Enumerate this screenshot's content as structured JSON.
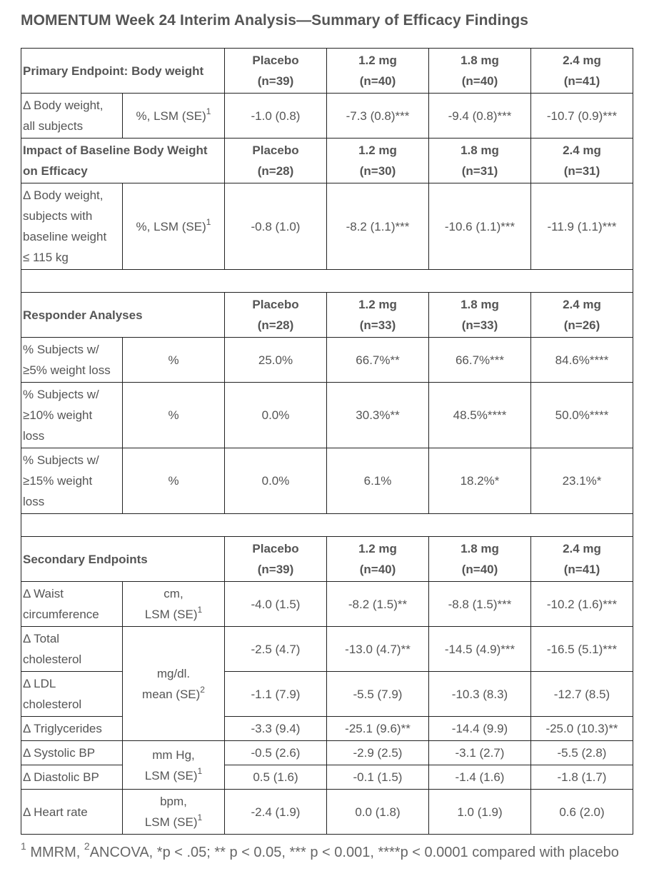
{
  "title": "MOMENTUM Week 24 Interim Analysis—Summary of Efficacy Findings",
  "sections": [
    {
      "header": {
        "title": "Primary Endpoint: Body weight",
        "arms": [
          {
            "name": "Placebo",
            "n": "(n=39)"
          },
          {
            "name": "1.2 mg",
            "n": "(n=40)"
          },
          {
            "name": "1.8 mg",
            "n": "(n=40)"
          },
          {
            "name": "2.4 mg",
            "n": "(n=41)"
          }
        ]
      },
      "rows": [
        {
          "label": [
            "Δ Body weight,",
            "all subjects"
          ],
          "unit": {
            "lines": [
              "%, LSM (SE)"
            ],
            "sup": "1",
            "rowspan": 1
          },
          "values": [
            "-1.0 (0.8)",
            "-7.3 (0.8)***",
            "-9.4 (0.8)***",
            "-10.7 (0.9)***"
          ]
        }
      ]
    },
    {
      "header": {
        "title": "Impact of Baseline Body Weight on Efficacy",
        "arms": [
          {
            "name": "Placebo",
            "n": "(n=28)"
          },
          {
            "name": "1.2 mg",
            "n": "(n=30)"
          },
          {
            "name": "1.8 mg",
            "n": "(n=31)"
          },
          {
            "name": "2.4 mg",
            "n": "(n=31)"
          }
        ]
      },
      "rows": [
        {
          "label": [
            "Δ Body weight,",
            "subjects with",
            "baseline weight",
            "≤ 115 kg"
          ],
          "unit": {
            "lines": [
              "%, LSM (SE)"
            ],
            "sup": "1",
            "rowspan": 1
          },
          "values": [
            "-0.8 (1.0)",
            "-8.2 (1.1)***",
            "-10.6 (1.1)***",
            "-11.9 (1.1)***"
          ]
        }
      ],
      "spacer_after": true
    },
    {
      "header": {
        "title": "Responder Analyses",
        "arms": [
          {
            "name": "Placebo",
            "n": "(n=28)"
          },
          {
            "name": "1.2 mg",
            "n": "(n=33)"
          },
          {
            "name": "1.8 mg",
            "n": "(n=33)"
          },
          {
            "name": "2.4 mg",
            "n": "(n=26)"
          }
        ]
      },
      "rows": [
        {
          "label": [
            "% Subjects w/",
            "≥5% weight loss"
          ],
          "unit": {
            "lines": [
              "%"
            ],
            "sup": "",
            "rowspan": 1
          },
          "values": [
            "25.0%",
            "66.7%**",
            "66.7%***",
            "84.6%****"
          ]
        },
        {
          "label": [
            "% Subjects w/",
            "≥10% weight",
            "loss"
          ],
          "unit": {
            "lines": [
              "%"
            ],
            "sup": "",
            "rowspan": 1
          },
          "values": [
            "0.0%",
            "30.3%**",
            "48.5%****",
            "50.0%****"
          ]
        },
        {
          "label": [
            "% Subjects w/",
            "≥15% weight",
            "loss"
          ],
          "unit": {
            "lines": [
              "%"
            ],
            "sup": "",
            "rowspan": 1
          },
          "values": [
            "0.0%",
            "6.1%",
            "18.2%*",
            "23.1%*"
          ]
        }
      ],
      "spacer_after": true
    },
    {
      "header": {
        "title": "Secondary Endpoints",
        "arms": [
          {
            "name": "Placebo",
            "n": "(n=39)"
          },
          {
            "name": "1.2 mg",
            "n": "(n=40)"
          },
          {
            "name": "1.8 mg",
            "n": "(n=40)"
          },
          {
            "name": "2.4 mg",
            "n": "(n=41)"
          }
        ]
      },
      "rows": [
        {
          "label": [
            "Δ Waist",
            "circumference"
          ],
          "unit": {
            "lines": [
              "cm,",
              "LSM (SE)"
            ],
            "sup": "1",
            "rowspan": 1
          },
          "values": [
            "-4.0 (1.5)",
            "-8.2 (1.5)**",
            "-8.8 (1.5)***",
            "-10.2 (1.6)***"
          ]
        },
        {
          "label": [
            "Δ Total",
            "cholesterol"
          ],
          "unit": {
            "lines": [
              "mg/dl.",
              "mean (SE)"
            ],
            "sup": "2",
            "rowspan": 3
          },
          "values": [
            "-2.5 (4.7)",
            "-13.0 (4.7)**",
            "-14.5 (4.9)***",
            "-16.5 (5.1)***"
          ]
        },
        {
          "label": [
            "Δ LDL",
            "cholesterol"
          ],
          "values": [
            "-1.1 (7.9)",
            "-5.5 (7.9)",
            "-10.3 (8.3)",
            "-12.7 (8.5)"
          ]
        },
        {
          "label": [
            "Δ Triglycerides"
          ],
          "values": [
            "-3.3 (9.4)",
            "-25.1 (9.6)**",
            "-14.4 (9.9)",
            "-25.0 (10.3)**"
          ]
        },
        {
          "label": [
            "Δ Systolic BP"
          ],
          "unit": {
            "lines": [
              "mm Hg,",
              "LSM (SE)"
            ],
            "sup": "1",
            "rowspan": 2
          },
          "values": [
            "-0.5 (2.6)",
            "-2.9 (2.5)",
            "-3.1 (2.7)",
            "-5.5 (2.8)"
          ]
        },
        {
          "label": [
            "Δ Diastolic BP"
          ],
          "values": [
            "0.5 (1.6)",
            "-0.1 (1.5)",
            "-1.4 (1.6)",
            "-1.8 (1.7)"
          ]
        },
        {
          "label": [
            "Δ Heart rate"
          ],
          "unit": {
            "lines": [
              "bpm,",
              "LSM (SE)"
            ],
            "sup": "1",
            "rowspan": 1
          },
          "values": [
            "-2.4 (1.9)",
            "0.0 (1.8)",
            "1.0 (1.9)",
            "0.6 (2.0)"
          ]
        }
      ]
    }
  ],
  "footnote": {
    "sup1": "1",
    "part1": " MMRM, ",
    "sup2": "2",
    "part2": "ANCOVA, *p < .05; ** p < 0.05, *** p < 0.001, ****p < 0.0001 compared with placebo"
  }
}
